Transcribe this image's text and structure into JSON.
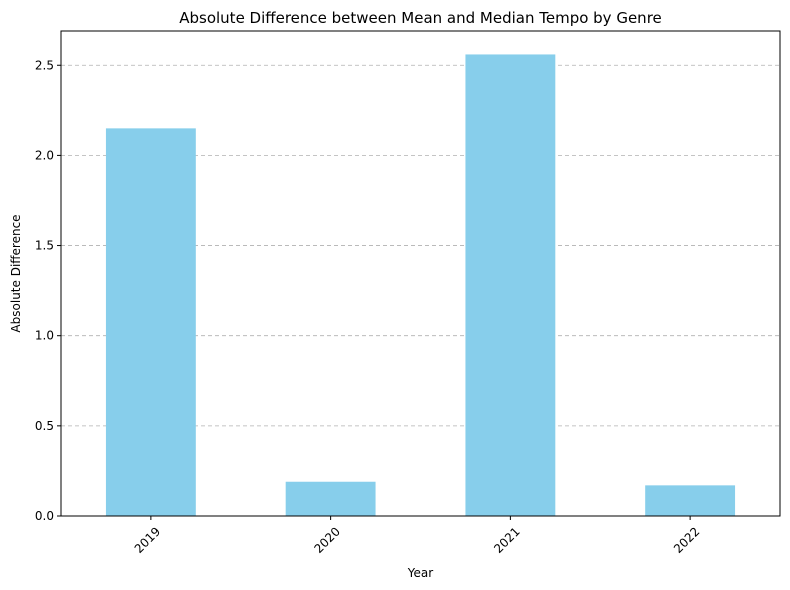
{
  "chart_data": {
    "type": "bar",
    "title": "Absolute Difference between Mean and Median Tempo by Genre",
    "xlabel": "Year",
    "ylabel": "Absolute Difference",
    "categories": [
      "2019",
      "2020",
      "2021",
      "2022"
    ],
    "values": [
      2.15,
      0.19,
      2.56,
      0.17
    ],
    "ylim": [
      0,
      2.69
    ],
    "yticks": [
      0.0,
      0.5,
      1.0,
      1.5,
      2.0,
      2.5
    ],
    "ytick_labels": [
      "0.0",
      "0.5",
      "1.0",
      "1.5",
      "2.0",
      "2.5"
    ],
    "grid": "y-dashed",
    "bar_color": "#87CEEB",
    "xtick_rotation_deg": 45,
    "legend": "none"
  }
}
